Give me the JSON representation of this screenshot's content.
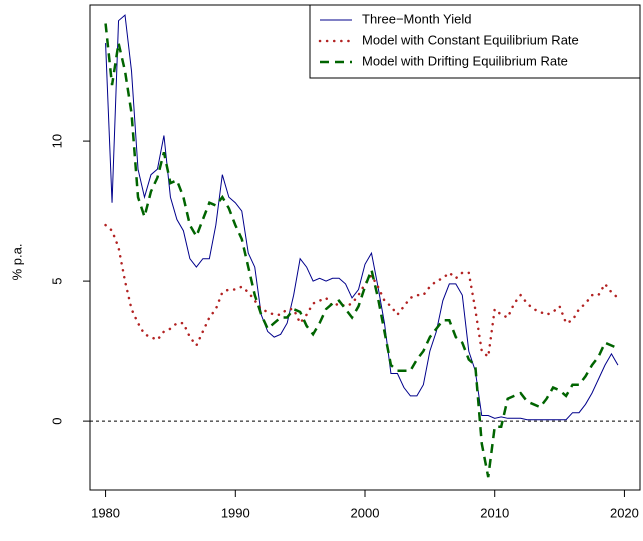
{
  "chart_data": {
    "type": "line",
    "y_label": "% p.a.",
    "x": [
      1980,
      1980.5,
      1981,
      1981.5,
      1982,
      1982.5,
      1983,
      1983.5,
      1984,
      1984.5,
      1985,
      1985.5,
      1986,
      1986.5,
      1987,
      1987.5,
      1988,
      1988.5,
      1989,
      1989.5,
      1990,
      1990.5,
      1991,
      1991.5,
      1992,
      1992.5,
      1993,
      1993.5,
      1994,
      1994.5,
      1995,
      1995.5,
      1996,
      1996.5,
      1997,
      1997.5,
      1998,
      1998.5,
      1999,
      1999.5,
      2000,
      2000.5,
      2001,
      2001.5,
      2002,
      2002.5,
      2003,
      2003.5,
      2004,
      2004.5,
      2005,
      2005.5,
      2006,
      2006.5,
      2007,
      2007.5,
      2008,
      2008.5,
      2009,
      2009.5,
      2010,
      2010.5,
      2011,
      2011.5,
      2012,
      2012.5,
      2013,
      2013.5,
      2014,
      2014.5,
      2015,
      2015.5,
      2016,
      2016.5,
      2017,
      2017.5,
      2018,
      2018.5,
      2019,
      2019.5
    ],
    "series": [
      {
        "name": "Three−Month Yield",
        "color": "#00008b",
        "style": "solid",
        "values": [
          13.5,
          7.8,
          14.3,
          14.5,
          12.5,
          9,
          8.0,
          8.8,
          9.0,
          10.2,
          8.0,
          7.2,
          6.8,
          5.8,
          5.5,
          5.8,
          5.8,
          7.0,
          8.8,
          8.0,
          7.8,
          7.5,
          6.0,
          5.5,
          3.8,
          3.2,
          3.0,
          3.1,
          3.5,
          4.5,
          5.8,
          5.5,
          5.0,
          5.1,
          5.0,
          5.1,
          5.1,
          4.9,
          4.4,
          4.7,
          5.6,
          6.0,
          4.8,
          3.5,
          1.7,
          1.7,
          1.2,
          0.9,
          0.9,
          1.3,
          2.5,
          3.2,
          4.3,
          4.9,
          4.9,
          4.5,
          2.5,
          1.8,
          0.2,
          0.2,
          0.1,
          0.15,
          0.1,
          0.1,
          0.1,
          0.05,
          0.05,
          0.05,
          0.05,
          0.05,
          0.05,
          0.05,
          0.3,
          0.3,
          0.6,
          1.0,
          1.5,
          2.0,
          2.4,
          2.0
        ]
      },
      {
        "name": "Model with Constant Equilibrium Rate",
        "color": "#b22222",
        "style": "dotted",
        "values": [
          7.0,
          6.8,
          6.2,
          5.0,
          4.0,
          3.5,
          3.1,
          3.0,
          2.9,
          3.2,
          3.3,
          3.5,
          3.5,
          3.0,
          2.7,
          3.2,
          3.7,
          4.0,
          4.6,
          4.7,
          4.7,
          4.8,
          4.6,
          4.3,
          4.0,
          3.9,
          3.8,
          3.8,
          4.0,
          4.0,
          3.5,
          3.8,
          4.2,
          4.3,
          4.4,
          4.1,
          4.2,
          4.1,
          4.2,
          4.5,
          4.9,
          5.2,
          4.8,
          4.3,
          4.1,
          3.8,
          4.1,
          4.4,
          4.5,
          4.5,
          4.8,
          5.0,
          5.1,
          5.3,
          5.1,
          5.3,
          5.3,
          4.0,
          2.5,
          2.3,
          4.0,
          3.8,
          3.7,
          4.2,
          4.5,
          4.2,
          4.0,
          3.9,
          3.8,
          3.9,
          4.1,
          3.5,
          3.6,
          4.0,
          4.2,
          4.5,
          4.5,
          4.9,
          4.6,
          4.4
        ]
      },
      {
        "name": "Model with Drifting Equilibrium Rate",
        "color": "#006400",
        "style": "dashed",
        "values": [
          14.2,
          12.0,
          13.5,
          12.5,
          11.0,
          8.0,
          7.3,
          8.2,
          8.7,
          9.6,
          8.5,
          8.6,
          8.0,
          7.0,
          6.6,
          7.2,
          7.8,
          7.7,
          8.0,
          7.6,
          7.0,
          6.5,
          5.5,
          4.5,
          3.8,
          3.3,
          3.5,
          3.7,
          3.7,
          4.0,
          3.9,
          3.4,
          3.1,
          3.5,
          4.0,
          4.2,
          4.3,
          4.0,
          3.7,
          4.1,
          4.8,
          5.4,
          4.4,
          3.2,
          2.0,
          1.8,
          1.8,
          1.8,
          2.2,
          2.5,
          3.0,
          3.3,
          3.6,
          3.6,
          3.0,
          2.8,
          2.2,
          2.0,
          -0.8,
          -2.0,
          -0.2,
          -0.2,
          0.8,
          0.9,
          1.0,
          0.7,
          0.6,
          0.5,
          0.8,
          1.2,
          1.1,
          0.9,
          1.3,
          1.3,
          1.6,
          2.0,
          2.3,
          2.8,
          2.7,
          2.6
        ]
      }
    ],
    "xlim": [
      1978.8,
      2021.2
    ],
    "xticks": [
      1980,
      1990,
      2000,
      2010,
      2020
    ],
    "ylim": [
      -2.46,
      14.86
    ],
    "yticks": [
      0,
      5,
      10
    ],
    "hline": 0,
    "legend": "top-right"
  }
}
